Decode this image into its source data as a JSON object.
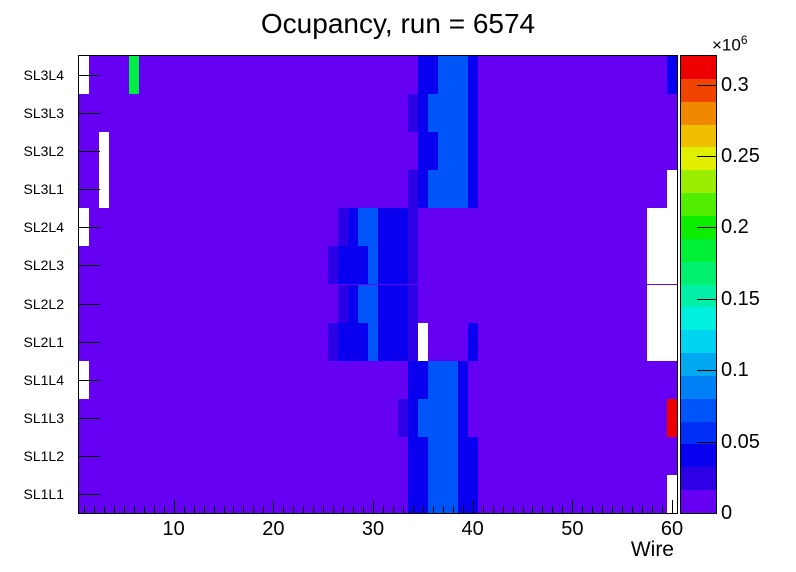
{
  "title": "Ocupancy, run = 6574",
  "x_axis": {
    "label": "Wire",
    "ticks": [
      10,
      20,
      30,
      40,
      50,
      60
    ],
    "bin_min": 1,
    "bin_max": 60,
    "minor_tick_step": 1
  },
  "y_axis": {
    "labels_top_to_bottom": [
      "SL3L4",
      "SL3L3",
      "SL3L2",
      "SL3L1",
      "SL2L4",
      "SL2L3",
      "SL2L2",
      "SL2L1",
      "SL1L4",
      "SL1L3",
      "SL1L2",
      "SL1L1"
    ]
  },
  "z_axis": {
    "exponent": {
      "base": "×10",
      "power": "6"
    },
    "tick_labels": [
      "0",
      "0.05",
      "0.1",
      "0.15",
      "0.2",
      "0.25",
      "0.3"
    ],
    "tick_values": [
      0,
      0.05,
      0.1,
      0.15,
      0.2,
      0.25,
      0.3
    ],
    "max_value": 0.32,
    "unit_scale": 1000000
  },
  "palette_bands_bottom_to_top": [
    "#6600F2",
    "#2D00E6",
    "#0A00F0",
    "#0030F5",
    "#0055F8",
    "#0080F5",
    "#00A8F0",
    "#00D4F0",
    "#00F0E0",
    "#00F0A8",
    "#00F070",
    "#00F038",
    "#0CEE00",
    "#52EE00",
    "#9CEE00",
    "#E0EE00",
    "#F0C000",
    "#F08800",
    "#F04400",
    "#EE0000"
  ],
  "chart_data": {
    "type": "heatmap",
    "title": "Ocupancy, run = 6574",
    "xlabel": "Wire",
    "ylabel": "",
    "x_range": [
      1,
      60
    ],
    "row_labels_top_to_bottom": [
      "SL3L4",
      "SL3L3",
      "SL3L2",
      "SL3L1",
      "SL2L4",
      "SL2L3",
      "SL2L2",
      "SL2L1",
      "SL1L4",
      "SL1L3",
      "SL1L2",
      "SL1L1"
    ],
    "legend_position": "right-colorbar",
    "background_class": "background",
    "color_classes": {
      "background": {
        "hex": "#6600F2",
        "approx_value": 10000
      },
      "blue_violet": {
        "hex": "#2D00E6",
        "approx_value": 25000
      },
      "blue_dark": {
        "hex": "#0A00F0",
        "approx_value": 42000
      },
      "blue_bright": {
        "hex": "#0055F8",
        "approx_value": 72000
      },
      "green": {
        "hex": "#00EE44",
        "approx_value": 185000
      },
      "red": {
        "hex": "#EE0000",
        "approx_value": 315000
      },
      "empty": {
        "hex": "#FFFFFF",
        "approx_value": 0
      }
    },
    "rows": [
      {
        "label": "SL3L4",
        "segments": [
          {
            "w1": 1,
            "w2": 1,
            "c": "empty"
          },
          {
            "w1": 6,
            "w2": 6,
            "c": "green"
          },
          {
            "w1": 35,
            "w2": 36,
            "c": "blue_dark"
          },
          {
            "w1": 37,
            "w2": 39,
            "c": "blue_bright"
          },
          {
            "w1": 40,
            "w2": 40,
            "c": "blue_dark"
          },
          {
            "w1": 60,
            "w2": 60,
            "c": "blue_dark"
          }
        ]
      },
      {
        "label": "SL3L3",
        "segments": [
          {
            "w1": 34,
            "w2": 34,
            "c": "blue_violet"
          },
          {
            "w1": 35,
            "w2": 35,
            "c": "blue_dark"
          },
          {
            "w1": 36,
            "w2": 39,
            "c": "blue_bright"
          },
          {
            "w1": 40,
            "w2": 40,
            "c": "blue_dark"
          }
        ]
      },
      {
        "label": "SL3L2",
        "segments": [
          {
            "w1": 3,
            "w2": 3,
            "c": "empty"
          },
          {
            "w1": 35,
            "w2": 36,
            "c": "blue_dark"
          },
          {
            "w1": 37,
            "w2": 39,
            "c": "blue_bright"
          },
          {
            "w1": 40,
            "w2": 40,
            "c": "blue_dark"
          }
        ]
      },
      {
        "label": "SL3L1",
        "segments": [
          {
            "w1": 3,
            "w2": 3,
            "c": "empty"
          },
          {
            "w1": 34,
            "w2": 34,
            "c": "blue_violet"
          },
          {
            "w1": 35,
            "w2": 35,
            "c": "blue_dark"
          },
          {
            "w1": 36,
            "w2": 39,
            "c": "blue_bright"
          },
          {
            "w1": 40,
            "w2": 40,
            "c": "blue_dark"
          },
          {
            "w1": 60,
            "w2": 60,
            "c": "empty"
          }
        ]
      },
      {
        "label": "SL2L4",
        "segments": [
          {
            "w1": 1,
            "w2": 1,
            "c": "empty"
          },
          {
            "w1": 27,
            "w2": 27,
            "c": "blue_violet"
          },
          {
            "w1": 28,
            "w2": 28,
            "c": "blue_dark"
          },
          {
            "w1": 29,
            "w2": 30,
            "c": "blue_bright"
          },
          {
            "w1": 31,
            "w2": 33,
            "c": "blue_dark"
          },
          {
            "w1": 34,
            "w2": 34,
            "c": "blue_violet"
          },
          {
            "w1": 58,
            "w2": 60,
            "c": "empty"
          }
        ]
      },
      {
        "label": "SL2L3",
        "segments": [
          {
            "w1": 26,
            "w2": 26,
            "c": "blue_violet"
          },
          {
            "w1": 27,
            "w2": 29,
            "c": "blue_dark"
          },
          {
            "w1": 30,
            "w2": 30,
            "c": "blue_bright"
          },
          {
            "w1": 31,
            "w2": 33,
            "c": "blue_dark"
          },
          {
            "w1": 34,
            "w2": 34,
            "c": "blue_violet"
          },
          {
            "w1": 58,
            "w2": 60,
            "c": "empty"
          }
        ]
      },
      {
        "label": "SL2L2",
        "segments": [
          {
            "w1": 27,
            "w2": 27,
            "c": "blue_violet"
          },
          {
            "w1": 28,
            "w2": 28,
            "c": "blue_dark"
          },
          {
            "w1": 29,
            "w2": 30,
            "c": "blue_bright"
          },
          {
            "w1": 31,
            "w2": 33,
            "c": "blue_dark"
          },
          {
            "w1": 34,
            "w2": 34,
            "c": "blue_violet"
          },
          {
            "w1": 58,
            "w2": 60,
            "c": "empty"
          }
        ]
      },
      {
        "label": "SL2L1",
        "segments": [
          {
            "w1": 26,
            "w2": 26,
            "c": "blue_violet"
          },
          {
            "w1": 27,
            "w2": 29,
            "c": "blue_dark"
          },
          {
            "w1": 30,
            "w2": 30,
            "c": "blue_bright"
          },
          {
            "w1": 31,
            "w2": 33,
            "c": "blue_dark"
          },
          {
            "w1": 34,
            "w2": 34,
            "c": "blue_violet"
          },
          {
            "w1": 35,
            "w2": 35,
            "c": "empty"
          },
          {
            "w1": 40,
            "w2": 40,
            "c": "blue_dark"
          },
          {
            "w1": 58,
            "w2": 60,
            "c": "empty"
          }
        ]
      },
      {
        "label": "SL1L4",
        "segments": [
          {
            "w1": 1,
            "w2": 1,
            "c": "empty"
          },
          {
            "w1": 34,
            "w2": 35,
            "c": "blue_dark"
          },
          {
            "w1": 36,
            "w2": 38,
            "c": "blue_bright"
          },
          {
            "w1": 39,
            "w2": 39,
            "c": "blue_dark"
          }
        ]
      },
      {
        "label": "SL1L3",
        "segments": [
          {
            "w1": 33,
            "w2": 33,
            "c": "blue_violet"
          },
          {
            "w1": 34,
            "w2": 34,
            "c": "blue_dark"
          },
          {
            "w1": 35,
            "w2": 38,
            "c": "blue_bright"
          },
          {
            "w1": 39,
            "w2": 39,
            "c": "blue_dark"
          },
          {
            "w1": 60,
            "w2": 60,
            "c": "red"
          }
        ]
      },
      {
        "label": "SL1L2",
        "segments": [
          {
            "w1": 34,
            "w2": 35,
            "c": "blue_dark"
          },
          {
            "w1": 36,
            "w2": 38,
            "c": "blue_bright"
          },
          {
            "w1": 39,
            "w2": 40,
            "c": "blue_dark"
          }
        ]
      },
      {
        "label": "SL1L1",
        "segments": [
          {
            "w1": 34,
            "w2": 35,
            "c": "blue_dark"
          },
          {
            "w1": 36,
            "w2": 38,
            "c": "blue_bright"
          },
          {
            "w1": 39,
            "w2": 40,
            "c": "blue_dark"
          },
          {
            "w1": 60,
            "w2": 60,
            "c": "empty"
          }
        ]
      }
    ]
  }
}
